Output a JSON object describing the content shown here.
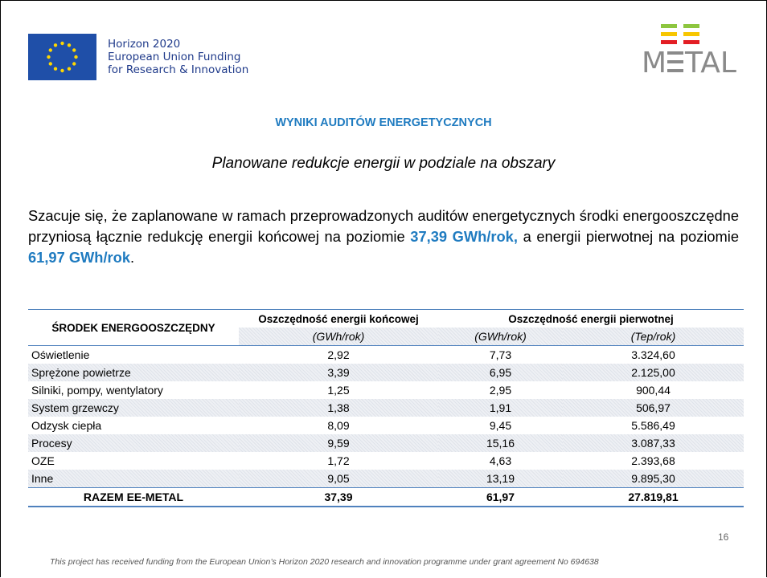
{
  "header": {
    "funding_lines": [
      "Horizon 2020",
      "European Union Funding",
      "for Research & Innovation"
    ],
    "logo": {
      "start": "M",
      "end": "TAL"
    }
  },
  "title": "WYNIKI AUDITÓW ENERGETYCZNYCH",
  "subtitle": "Planowane redukcje energii w podziale na obszary",
  "paragraph": {
    "text_1": "Szacuje się, że zaplanowane w ramach przeprowadzonych auditów energetycznych środki energooszczędne przyniosą łącznie redukcję energii końcowej na poziomie ",
    "highlight_1": "37,39 GWh/rok,",
    "text_2": " a energii pierwotnej na poziomie ",
    "highlight_2": "61,97 GWh/rok",
    "text_3": "."
  },
  "table": {
    "header": {
      "measure": "ŚRODEK ENERGOOSZCZĘDNY",
      "final": "Oszczędność energii końcowej",
      "primary": "Oszczędność energii pierwotnej",
      "units": [
        "(GWh/rok)",
        "(GWh/rok)",
        "(Tep/rok)"
      ]
    },
    "rows": [
      [
        "Oświetlenie",
        "2,92",
        "7,73",
        "3.324,60"
      ],
      [
        "Sprężone powietrze",
        "3,39",
        "6,95",
        "2.125,00"
      ],
      [
        "Silniki, pompy, wentylatory",
        "1,25",
        "2,95",
        "900,44"
      ],
      [
        "System grzewczy",
        "1,38",
        "1,91",
        "506,97"
      ],
      [
        "Odzysk ciepła",
        "8,09",
        "9,45",
        "5.586,49"
      ],
      [
        "Procesy",
        "9,59",
        "15,16",
        "3.087,33"
      ],
      [
        "OZE",
        "1,72",
        "4,63",
        "2.393,68"
      ],
      [
        "Inne",
        "9,05",
        "13,19",
        "9.895,30"
      ]
    ],
    "total": [
      "RAZEM EE-METAL",
      "37,39",
      "61,97",
      "27.819,81"
    ]
  },
  "page_number": "16",
  "footer": "This project has received  funding from the European Union’s Horizon 2020 research and innovation programme under grant agreement No 694638"
}
